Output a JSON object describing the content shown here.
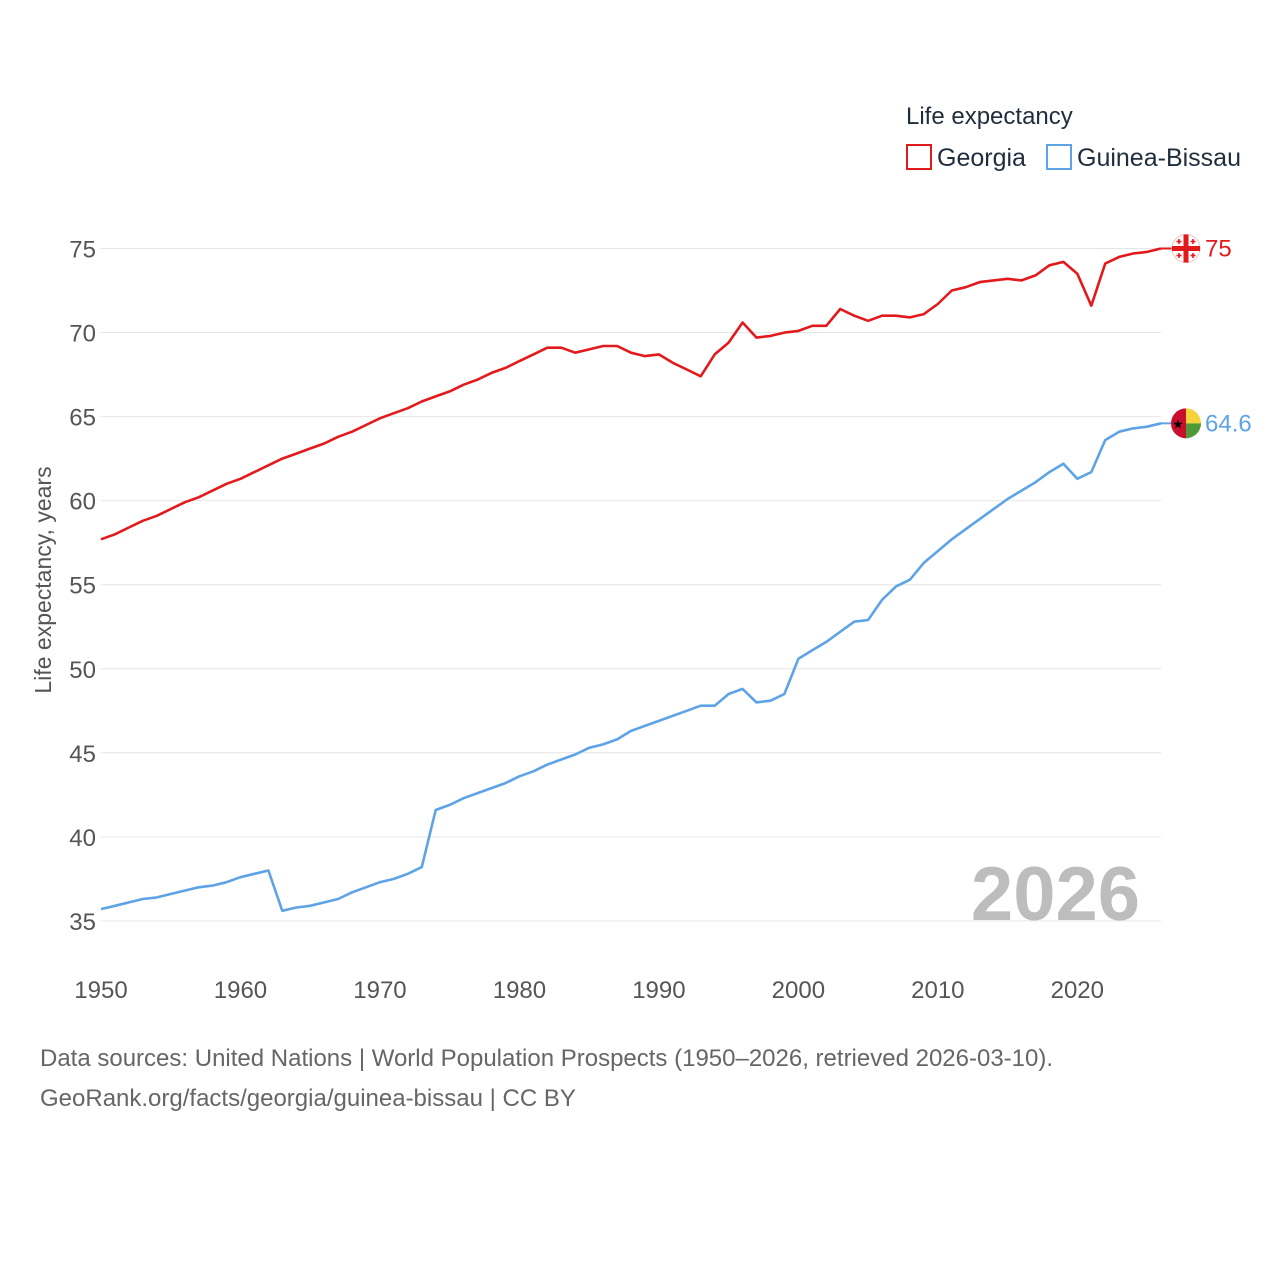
{
  "chart_data": {
    "type": "line",
    "legend_title": "Life expectancy",
    "ylabel": "Life expectancy, years",
    "xlabel": "",
    "ylim": [
      33,
      77
    ],
    "xlim": [
      1950,
      2026
    ],
    "y_ticks": [
      35,
      40,
      45,
      50,
      55,
      60,
      65,
      70,
      75
    ],
    "x_ticks": [
      1950,
      1960,
      1970,
      1980,
      1990,
      2000,
      2010,
      2020
    ],
    "current_year": "2026",
    "legend_position": "top-right",
    "series": [
      {
        "name": "Georgia",
        "color": "#e31a1c",
        "end_label": "75",
        "flag": "georgia-flag",
        "x": [
          1950,
          1951,
          1952,
          1953,
          1954,
          1955,
          1956,
          1957,
          1958,
          1959,
          1960,
          1961,
          1962,
          1963,
          1964,
          1965,
          1966,
          1967,
          1968,
          1969,
          1970,
          1971,
          1972,
          1973,
          1974,
          1975,
          1976,
          1977,
          1978,
          1979,
          1980,
          1981,
          1982,
          1983,
          1984,
          1985,
          1986,
          1987,
          1988,
          1989,
          1990,
          1991,
          1992,
          1993,
          1994,
          1995,
          1996,
          1997,
          1998,
          1999,
          2000,
          2001,
          2002,
          2003,
          2004,
          2005,
          2006,
          2007,
          2008,
          2009,
          2010,
          2011,
          2012,
          2013,
          2014,
          2015,
          2016,
          2017,
          2018,
          2019,
          2020,
          2021,
          2022,
          2023,
          2024,
          2025,
          2026
        ],
        "values": [
          57.7,
          58.0,
          58.4,
          58.8,
          59.1,
          59.5,
          59.9,
          60.2,
          60.6,
          61.0,
          61.3,
          61.7,
          62.1,
          62.5,
          62.8,
          63.1,
          63.4,
          63.8,
          64.1,
          64.5,
          64.9,
          65.2,
          65.5,
          65.9,
          66.2,
          66.5,
          66.9,
          67.2,
          67.6,
          67.9,
          68.3,
          68.7,
          69.1,
          69.1,
          68.8,
          69.0,
          69.2,
          69.2,
          68.8,
          68.6,
          68.7,
          68.2,
          67.8,
          67.4,
          68.7,
          69.4,
          70.6,
          69.7,
          69.8,
          70.0,
          70.1,
          70.4,
          70.4,
          71.4,
          71.0,
          70.7,
          71.0,
          71.0,
          70.9,
          71.1,
          71.7,
          72.5,
          72.7,
          73.0,
          73.1,
          73.2,
          73.1,
          73.4,
          74.0,
          74.2,
          73.5,
          71.6,
          74.1,
          74.5,
          74.7,
          74.8,
          75.0
        ]
      },
      {
        "name": "Guinea-Bissau",
        "color": "#5ea3e6",
        "end_label": "64.6",
        "flag": "guinea-bissau-flag",
        "x": [
          1950,
          1951,
          1952,
          1953,
          1954,
          1955,
          1956,
          1957,
          1958,
          1959,
          1960,
          1961,
          1962,
          1963,
          1964,
          1965,
          1966,
          1967,
          1968,
          1969,
          1970,
          1971,
          1972,
          1973,
          1974,
          1975,
          1976,
          1977,
          1978,
          1979,
          1980,
          1981,
          1982,
          1983,
          1984,
          1985,
          1986,
          1987,
          1988,
          1989,
          1990,
          1991,
          1992,
          1993,
          1994,
          1995,
          1996,
          1997,
          1998,
          1999,
          2000,
          2001,
          2002,
          2003,
          2004,
          2005,
          2006,
          2007,
          2008,
          2009,
          2010,
          2011,
          2012,
          2013,
          2014,
          2015,
          2016,
          2017,
          2018,
          2019,
          2020,
          2021,
          2022,
          2023,
          2024,
          2025,
          2026
        ],
        "values": [
          35.7,
          35.9,
          36.1,
          36.3,
          36.4,
          36.6,
          36.8,
          37.0,
          37.1,
          37.3,
          37.6,
          37.8,
          38.0,
          35.6,
          35.8,
          35.9,
          36.1,
          36.3,
          36.7,
          37.0,
          37.3,
          37.5,
          37.8,
          38.2,
          41.6,
          41.9,
          42.3,
          42.6,
          42.9,
          43.2,
          43.6,
          43.9,
          44.3,
          44.6,
          44.9,
          45.3,
          45.5,
          45.8,
          46.3,
          46.6,
          46.9,
          47.2,
          47.5,
          47.8,
          47.8,
          48.5,
          48.8,
          48.0,
          48.1,
          48.5,
          50.6,
          51.1,
          51.6,
          52.2,
          52.8,
          52.9,
          54.1,
          54.9,
          55.3,
          56.3,
          57.0,
          57.7,
          58.3,
          58.9,
          59.5,
          60.1,
          60.6,
          61.1,
          61.7,
          62.2,
          61.3,
          61.7,
          63.6,
          64.1,
          64.3,
          64.4,
          64.6
        ]
      }
    ]
  },
  "footer": {
    "line1": "Data sources: United Nations | World Population Prospects (1950–2026, retrieved 2026-03-10).",
    "line2": "GeoRank.org/facts/georgia/guinea-bissau | CC BY"
  }
}
